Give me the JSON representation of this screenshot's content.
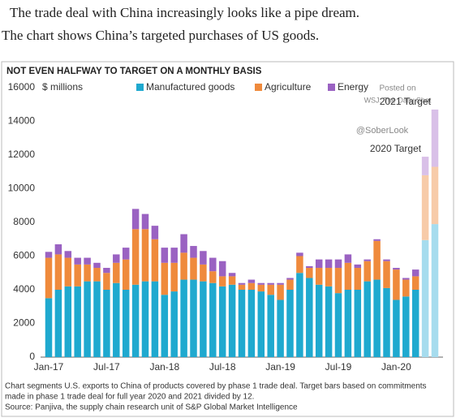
{
  "intro": [
    "The trade deal with China increasingly looks like a pipe dream.",
    "The chart shows China’s targeted purchases of US goods."
  ],
  "chart_data": {
    "type": "stacked-bar",
    "title": "NOT EVEN HALFWAY TO TARGET ON A MONTHLY BASIS",
    "y_unit": "$ millions",
    "categories": [
      "Jan-17",
      null,
      null,
      null,
      null,
      null,
      "Jul-17",
      null,
      null,
      null,
      null,
      null,
      "Jan-18",
      null,
      null,
      null,
      null,
      null,
      "Jul-18",
      null,
      null,
      null,
      null,
      null,
      "Jan-19",
      null,
      null,
      null,
      null,
      null,
      "Jul-19",
      null,
      null,
      null,
      null,
      null,
      "Jan-20",
      null,
      null
    ],
    "series": [
      {
        "name": "Manufactured goods",
        "color": "#1fa9cf",
        "light_color": "#a6dcee",
        "values": [
          3500,
          4000,
          4200,
          4200,
          4500,
          4500,
          4000,
          4400,
          4000,
          4300,
          4500,
          4500,
          3700,
          3900,
          4600,
          4600,
          4500,
          4400,
          4200,
          4300,
          4000,
          4000,
          3900,
          3700,
          3400,
          4000,
          5000,
          4700,
          4300,
          4200,
          3800,
          4000,
          4000,
          4500,
          4600,
          4100,
          3400,
          3600,
          4000
        ]
      },
      {
        "name": "Agriculture",
        "color": "#ef8a3c",
        "light_color": "#f7cba9",
        "values": [
          2400,
          2100,
          1700,
          1300,
          1000,
          800,
          1000,
          1200,
          1800,
          3300,
          3100,
          2500,
          1900,
          1700,
          1600,
          1300,
          1000,
          700,
          600,
          500,
          300,
          400,
          400,
          600,
          900,
          600,
          1000,
          600,
          1000,
          1100,
          1500,
          1600,
          1300,
          1200,
          2300,
          1600,
          1800,
          1000,
          800
        ]
      },
      {
        "name": "Energy",
        "color": "#9a62c2",
        "light_color": "#d9c0e8",
        "values": [
          350,
          600,
          400,
          400,
          400,
          300,
          300,
          500,
          700,
          1200,
          900,
          800,
          900,
          900,
          1100,
          700,
          800,
          800,
          900,
          200,
          100,
          200,
          100,
          100,
          100,
          100,
          200,
          100,
          500,
          500,
          500,
          500,
          200,
          100,
          100,
          100,
          100,
          100,
          400
        ]
      }
    ],
    "targets": [
      {
        "label": "2020 Target",
        "values": [
          6950,
          3850,
          1100
        ]
      },
      {
        "label": "2021 Target",
        "values": [
          7900,
          3400,
          3400
        ]
      }
    ],
    "ylim": [
      0,
      16000
    ],
    "yticks": [
      0,
      2000,
      4000,
      6000,
      8000,
      10000,
      12000,
      14000,
      16000
    ],
    "grid": false,
    "watermark": [
      "Posted on",
      "WSJ: The Daily Shot",
      "@SoberLook"
    ],
    "footnote": [
      "Chart segments U.S. exports to China of products covered by phase 1 trade deal. Target bars based on commitments",
      "made in phase 1 trade deal for full year 2020 and 2021 divided by 12.",
      "Source: Panjiva, the supply chain research unit of S&P Global Market Intelligence"
    ]
  }
}
